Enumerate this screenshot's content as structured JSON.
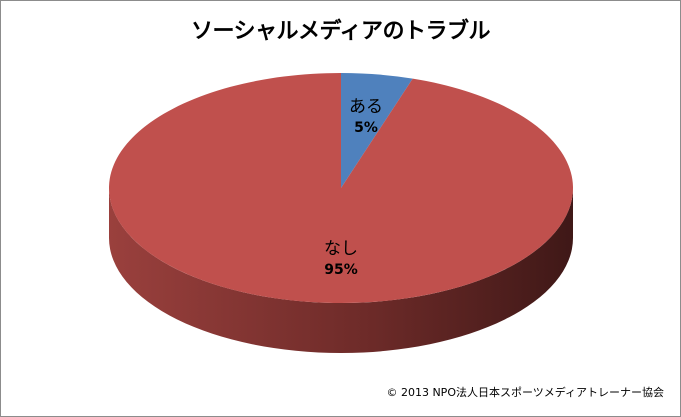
{
  "chart_data": {
    "type": "pie",
    "title": "ソーシャルメディアのトラブル",
    "categories": [
      "ある",
      "なし"
    ],
    "values": [
      5,
      95
    ],
    "labels": [
      "5%",
      "95%"
    ],
    "colors": {
      "ある": "#4f81bd",
      "なし": "#c0504d",
      "なし_side_dark": "#3f1817",
      "なし_side_light": "#9a403d",
      "ある_side": "#36598a"
    },
    "style": "3d-pie",
    "legend": "none"
  },
  "footer": {
    "copyright": "© 2013 NPO法人日本スポーツメディアトレーナー協会"
  }
}
